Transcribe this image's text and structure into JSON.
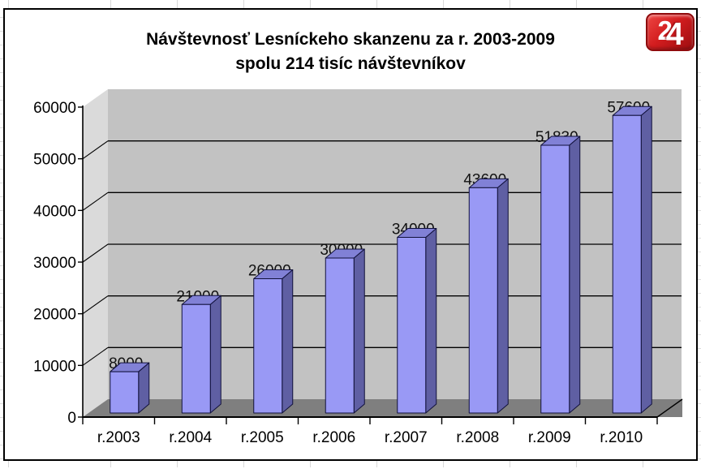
{
  "logo": {
    "text2": "2",
    "text4": "4",
    "bg_color": "#d31d1f",
    "text_color": "#ffffff"
  },
  "chart_data": {
    "type": "bar",
    "style": "3d-column",
    "title_line1": "Návštevnosť Lesníckeho skanzenu za r. 2003-2009",
    "title_line2": "spolu 214 tisíc návštevníkov",
    "categories": [
      "r.2003",
      "r.2004",
      "r.2005",
      "r.2006",
      "r.2007",
      "r.2008",
      "r.2009",
      "r.2010"
    ],
    "values": [
      8000,
      21000,
      26000,
      30000,
      34000,
      43600,
      51830,
      57600
    ],
    "data_labels": true,
    "y_ticks": [
      0,
      10000,
      20000,
      30000,
      40000,
      50000,
      60000
    ],
    "ylim": [
      0,
      60000
    ],
    "grid": true,
    "legend": "none",
    "xlabel": "",
    "ylabel": "",
    "colors": {
      "bar_front": "#9999f5",
      "bar_side": "#5f5fa3",
      "bar_top": "#8181d6",
      "bar_outline": "#10103a",
      "back_wall": "#c2c2c2",
      "side_wall": "#dadada",
      "floor": "#7f7f7f",
      "gridline": "#000000",
      "axis_line": "#000000",
      "text": "#000000"
    }
  }
}
